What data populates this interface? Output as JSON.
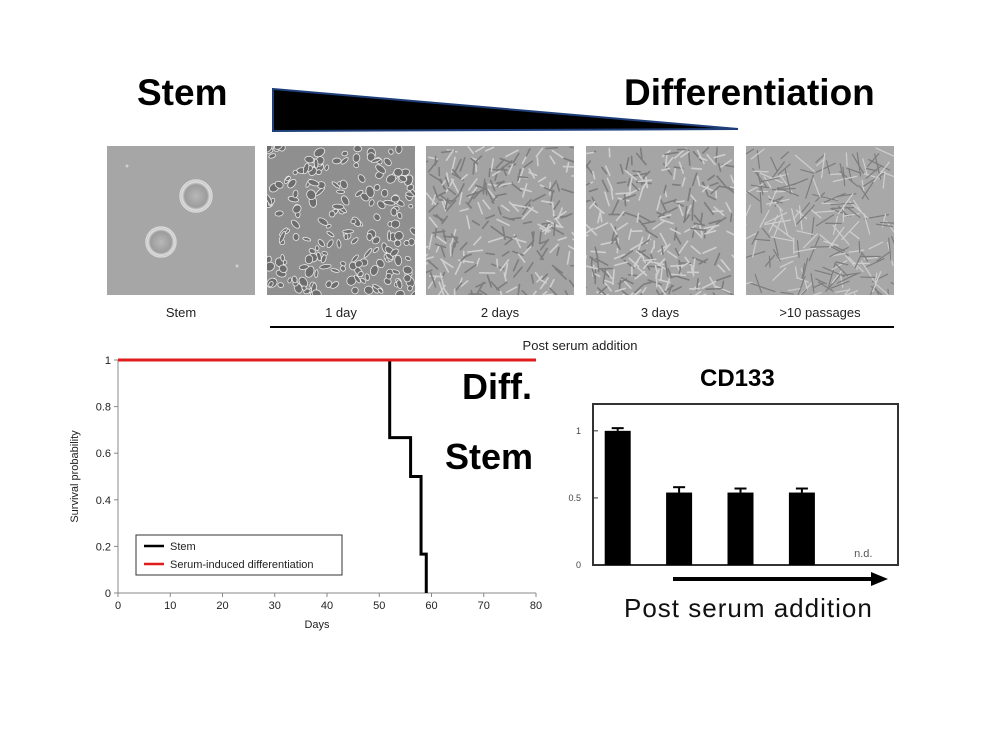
{
  "header": {
    "stem_label": "Stem",
    "diff_label": "Differentiation"
  },
  "panels": [
    {
      "caption": "Stem"
    },
    {
      "caption": "1 day"
    },
    {
      "caption": "2 days"
    },
    {
      "caption": "3 days"
    },
    {
      "caption": ">10 passages"
    }
  ],
  "post_serum_small": "Post serum addition",
  "survival_overlay": {
    "diff_label": "Diff.",
    "stem_label": "Stem"
  },
  "bar_overlay": {
    "title": "CD133",
    "arrow_label": "Post serum addition"
  },
  "colors": {
    "stem_line": "#000000",
    "diff_line": "#e01b1b",
    "bar_fill": "#000000",
    "wedge_fill": "#000000",
    "wedge_stroke": "#1f3f7a"
  },
  "chart_data": [
    {
      "type": "line",
      "chart": "survival",
      "xlabel": "Days",
      "ylabel": "Survival probability",
      "xlim": [
        0,
        80
      ],
      "ylim": [
        0,
        1
      ],
      "xticks": [
        0,
        10,
        20,
        30,
        40,
        50,
        60,
        70,
        80
      ],
      "yticks": [
        0,
        0.2,
        0.4,
        0.6,
        0.8,
        1
      ],
      "ytick_labels": [
        "0",
        "0.2",
        "0.4",
        "0.6",
        "0.8",
        "1"
      ],
      "grid": false,
      "legend": "bottom-left",
      "series": [
        {
          "name": "Stem",
          "step": true,
          "x": [
            0,
            52,
            52,
            56,
            56,
            58,
            58,
            59,
            59
          ],
          "y": [
            1,
            1,
            0.667,
            0.667,
            0.5,
            0.5,
            0.167,
            0.167,
            0
          ]
        },
        {
          "name": "Serum-induced differentiation",
          "step": true,
          "x": [
            0,
            80
          ],
          "y": [
            1,
            1
          ]
        }
      ]
    },
    {
      "type": "bar",
      "chart": "cd133",
      "ylim": [
        0,
        1.2
      ],
      "yticks": [
        0,
        0.5,
        1
      ],
      "ytick_labels": [
        "0",
        "0.5",
        "1"
      ],
      "grid": false,
      "categories": [
        "",
        "",
        "",
        "",
        ""
      ],
      "values": [
        1.0,
        0.54,
        0.54,
        0.54,
        null
      ],
      "errors": [
        0.02,
        0.04,
        0.03,
        0.03,
        null
      ],
      "annotations": [
        {
          "category_index": 4,
          "text": "n.d."
        }
      ]
    }
  ]
}
